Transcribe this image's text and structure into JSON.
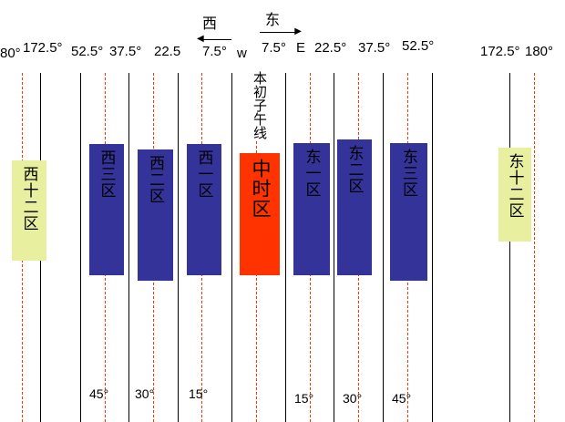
{
  "direction": {
    "west": "西",
    "east": "东"
  },
  "top_labels": [
    "80°",
    "172.5°",
    "52.5°",
    "37.5°",
    "22.5",
    "7.5°",
    "w",
    "7.5°",
    "E",
    "22.5°",
    "37.5°",
    "52.5°",
    "172.5°",
    "180°"
  ],
  "prime_meridian": "本初子午线",
  "zones": [
    "西十二区",
    "西三区",
    "西二区",
    "西一区",
    "中时区",
    "东一区",
    "东二区",
    "东三区",
    "东十二区"
  ],
  "bottom_labels": [
    "45°",
    "30°",
    "15°",
    "15°",
    "30°",
    "45°"
  ],
  "colors": {
    "zone": "#333399",
    "center": "#ff3300",
    "edge": "#e8f0a0",
    "dashed": "#ff3300"
  }
}
